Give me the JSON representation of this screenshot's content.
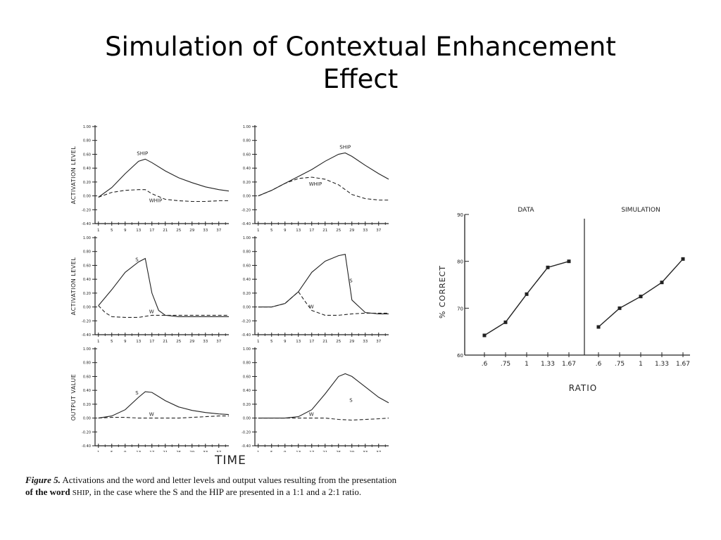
{
  "slide": {
    "title_line1": "Simulation of Contextual Enhancement",
    "title_line2": "Effect"
  },
  "left_figure": {
    "time_label": "TIME",
    "caption_label": "Figure 5.",
    "caption_text": " Activations and the word and letter levels and output values resulting from the presentation",
    "caption_line2_bold": "of the word ",
    "caption_word": "SHIP",
    "caption_rest": ", in the case where the S and the HIP are presented in a 1:1 and a 2:1 ratio."
  },
  "chart_data": [
    {
      "type": "line",
      "panel": "row1-left",
      "ylabel": "ACTIVATION LEVEL",
      "ylim": [
        -0.4,
        1.0
      ],
      "yticks": [
        "1.00",
        "0.80",
        "0.60",
        "0.40",
        "0.20",
        "0.00",
        "-0.20",
        "-0.40"
      ],
      "xticks": [
        "1",
        "5",
        "9",
        "13",
        "17",
        "21",
        "25",
        "29",
        "33",
        "37"
      ],
      "series": [
        {
          "name": "SHIP",
          "style": "solid",
          "x": [
            1,
            5,
            9,
            13,
            15,
            17,
            21,
            25,
            29,
            33,
            37,
            40
          ],
          "y": [
            -0.02,
            0.12,
            0.32,
            0.5,
            0.53,
            0.48,
            0.36,
            0.26,
            0.19,
            0.13,
            0.09,
            0.07
          ]
        },
        {
          "name": "WHIP",
          "style": "dashed",
          "x": [
            1,
            5,
            9,
            13,
            15,
            17,
            21,
            25,
            29,
            33,
            37,
            40
          ],
          "y": [
            -0.02,
            0.05,
            0.08,
            0.09,
            0.09,
            0.03,
            -0.05,
            -0.07,
            -0.08,
            -0.08,
            -0.07,
            -0.07
          ]
        }
      ]
    },
    {
      "type": "line",
      "panel": "row1-right",
      "ylim": [
        -0.4,
        1.0
      ],
      "yticks": [
        "1.00",
        "0.80",
        "0.60",
        "0.40",
        "0.20",
        "0.00",
        "-0.20",
        "-0.40"
      ],
      "xticks": [
        "1",
        "5",
        "9",
        "13",
        "17",
        "21",
        "25",
        "29",
        "33",
        "37"
      ],
      "series": [
        {
          "name": "SHIP",
          "style": "solid",
          "x": [
            1,
            5,
            9,
            13,
            17,
            21,
            25,
            27,
            29,
            33,
            37,
            40
          ],
          "y": [
            0.0,
            0.08,
            0.18,
            0.28,
            0.38,
            0.5,
            0.6,
            0.62,
            0.57,
            0.44,
            0.32,
            0.24
          ]
        },
        {
          "name": "WHIP",
          "style": "dashed",
          "x": [
            1,
            5,
            9,
            13,
            17,
            21,
            25,
            29,
            33,
            37,
            40
          ],
          "y": [
            0.0,
            0.08,
            0.18,
            0.25,
            0.27,
            0.24,
            0.16,
            0.02,
            -0.04,
            -0.06,
            -0.06
          ]
        }
      ]
    },
    {
      "type": "line",
      "panel": "row2-left",
      "ylabel": "ACTIVATION LEVEL",
      "ylim": [
        -0.4,
        1.0
      ],
      "yticks": [
        "1.00",
        "0.80",
        "0.60",
        "0.40",
        "0.20",
        "0.00",
        "-0.20",
        "-0.40"
      ],
      "xticks": [
        "1",
        "5",
        "9",
        "13",
        "17",
        "21",
        "25",
        "29",
        "33",
        "37"
      ],
      "series": [
        {
          "name": "S",
          "style": "solid",
          "x": [
            1,
            5,
            9,
            13,
            15,
            17,
            19,
            21,
            25,
            29,
            33,
            37,
            40
          ],
          "y": [
            0.02,
            0.25,
            0.5,
            0.65,
            0.7,
            0.2,
            -0.05,
            -0.12,
            -0.14,
            -0.14,
            -0.14,
            -0.14,
            -0.14
          ]
        },
        {
          "name": "W",
          "style": "dashed",
          "x": [
            1,
            3,
            5,
            9,
            13,
            17,
            21,
            25,
            29,
            33,
            37,
            40
          ],
          "y": [
            0.02,
            -0.08,
            -0.14,
            -0.15,
            -0.15,
            -0.12,
            -0.12,
            -0.12,
            -0.12,
            -0.12,
            -0.12,
            -0.12
          ]
        }
      ]
    },
    {
      "type": "line",
      "panel": "row2-right",
      "ylim": [
        -0.4,
        1.0
      ],
      "yticks": [
        "1.00",
        "0.80",
        "0.60",
        "0.40",
        "0.20",
        "0.00",
        "-0.20",
        "-0.40"
      ],
      "xticks": [
        "1",
        "5",
        "9",
        "13",
        "17",
        "21",
        "25",
        "29",
        "33",
        "37"
      ],
      "series": [
        {
          "name": "S",
          "style": "solid",
          "x": [
            1,
            5,
            9,
            13,
            17,
            21,
            25,
            27,
            29,
            33,
            37,
            40
          ],
          "y": [
            0.0,
            0.0,
            0.05,
            0.22,
            0.5,
            0.66,
            0.74,
            0.76,
            0.1,
            -0.08,
            -0.1,
            -0.1
          ]
        },
        {
          "name": "W",
          "style": "dashed",
          "x": [
            1,
            5,
            9,
            13,
            15,
            17,
            21,
            25,
            29,
            33,
            37,
            40
          ],
          "y": [
            0.0,
            0.0,
            0.05,
            0.22,
            0.08,
            -0.05,
            -0.12,
            -0.12,
            -0.1,
            -0.09,
            -0.09,
            -0.09
          ]
        }
      ]
    },
    {
      "type": "line",
      "panel": "row3-left",
      "ylabel": "OUTPUT VALUE",
      "ylim": [
        -0.4,
        1.0
      ],
      "yticks": [
        "1.00",
        "0.80",
        "0.60",
        "0.40",
        "0.20",
        "0.00",
        "-0.20",
        "-0.40"
      ],
      "xticks": [
        "1",
        "5",
        "9",
        "13",
        "17",
        "21",
        "25",
        "29",
        "33",
        "37"
      ],
      "series": [
        {
          "name": "S",
          "style": "solid",
          "x": [
            1,
            5,
            9,
            13,
            15,
            17,
            21,
            25,
            29,
            33,
            37,
            40
          ],
          "y": [
            0.0,
            0.03,
            0.12,
            0.3,
            0.38,
            0.37,
            0.25,
            0.16,
            0.11,
            0.08,
            0.06,
            0.05
          ]
        },
        {
          "name": "W",
          "style": "dashed",
          "x": [
            1,
            5,
            9,
            13,
            17,
            21,
            25,
            29,
            33,
            37,
            40
          ],
          "y": [
            0.0,
            0.01,
            0.01,
            0.0,
            0.0,
            0.0,
            0.0,
            0.01,
            0.02,
            0.03,
            0.03
          ]
        }
      ]
    },
    {
      "type": "line",
      "panel": "row3-right",
      "ylim": [
        -0.4,
        1.0
      ],
      "yticks": [
        "1.00",
        "0.80",
        "0.60",
        "0.40",
        "0.20",
        "0.00",
        "-0.20",
        "-0.40"
      ],
      "xticks": [
        "1",
        "5",
        "9",
        "13",
        "17",
        "21",
        "25",
        "29",
        "33",
        "37"
      ],
      "series": [
        {
          "name": "S",
          "style": "solid",
          "x": [
            1,
            5,
            9,
            13,
            17,
            21,
            25,
            27,
            29,
            33,
            37,
            40
          ],
          "y": [
            0.0,
            0.0,
            0.0,
            0.02,
            0.12,
            0.35,
            0.6,
            0.64,
            0.6,
            0.45,
            0.3,
            0.22
          ]
        },
        {
          "name": "W",
          "style": "dashed",
          "x": [
            1,
            5,
            9,
            13,
            17,
            21,
            25,
            29,
            33,
            37,
            40
          ],
          "y": [
            0.0,
            0.0,
            0.0,
            0.0,
            0.0,
            0.0,
            -0.02,
            -0.03,
            -0.02,
            -0.01,
            0.0
          ]
        }
      ]
    },
    {
      "type": "line",
      "panel": "data",
      "title": "DATA",
      "ylabel": "% CORRECT",
      "xlabel": "RATIO",
      "categories": [
        ".6",
        ".75",
        "1",
        "1.33",
        "1.67"
      ],
      "yticks": [
        "90",
        "80",
        "70",
        "60"
      ],
      "ylim": [
        60,
        90
      ],
      "series": [
        {
          "values": [
            64.2,
            67.0,
            73.0,
            78.7,
            80.0
          ]
        }
      ]
    },
    {
      "type": "line",
      "panel": "simulation",
      "title": "SIMULATION",
      "xlabel": "RATIO",
      "categories": [
        ".6",
        ".75",
        "1",
        "1.33",
        "1.67"
      ],
      "ylim": [
        60,
        90
      ],
      "series": [
        {
          "values": [
            66.0,
            70.0,
            72.5,
            75.5,
            80.5
          ]
        }
      ]
    }
  ]
}
